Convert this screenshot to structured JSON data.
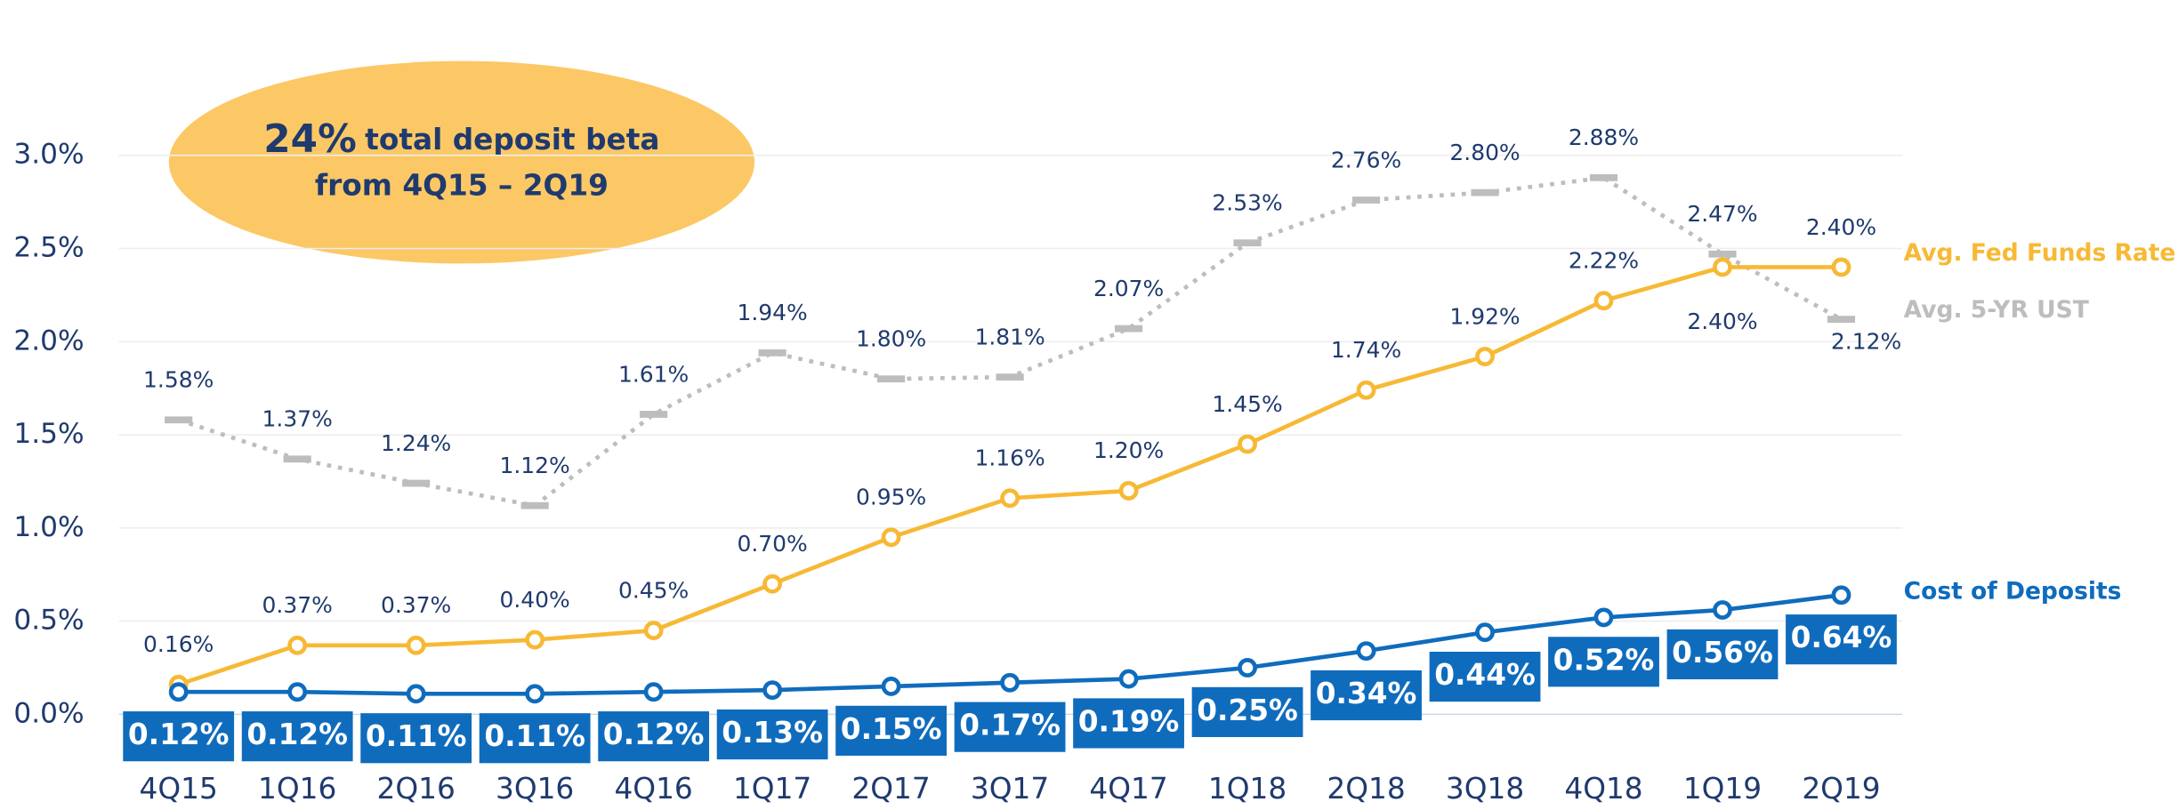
{
  "chart_data": {
    "type": "line",
    "annotation": {
      "highlight": "24%",
      "text": "total deposit beta",
      "text2": "from 4Q15 – 2Q19"
    },
    "categories": [
      "4Q15",
      "1Q16",
      "2Q16",
      "3Q16",
      "4Q16",
      "1Q17",
      "2Q17",
      "3Q17",
      "4Q17",
      "1Q18",
      "2Q18",
      "3Q18",
      "4Q18",
      "1Q19",
      "2Q19"
    ],
    "series": [
      {
        "name": "Avg. 5-YR UST",
        "color": "#bdbdbd",
        "marker": "dash",
        "values": [
          1.58,
          1.37,
          1.24,
          1.12,
          1.61,
          1.94,
          1.8,
          1.81,
          2.07,
          2.53,
          2.76,
          2.8,
          2.88,
          2.47,
          2.12
        ],
        "value_labels": [
          "1.58%",
          "1.37%",
          "1.24%",
          "1.12%",
          "1.61%",
          "1.94%",
          "1.80%",
          "1.81%",
          "2.07%",
          "2.53%",
          "2.76%",
          "2.80%",
          "2.88%",
          "2.47%",
          "2.12%"
        ]
      },
      {
        "name": "Avg. Fed Funds Rate",
        "color": "#f7b935",
        "marker": "circle",
        "values": [
          0.16,
          0.37,
          0.37,
          0.4,
          0.45,
          0.7,
          0.95,
          1.16,
          1.2,
          1.45,
          1.74,
          1.92,
          2.22,
          2.4,
          2.4
        ],
        "value_labels": [
          "0.16%",
          "0.37%",
          "0.37%",
          "0.40%",
          "0.45%",
          "0.70%",
          "0.95%",
          "1.16%",
          "1.20%",
          "1.45%",
          "1.74%",
          "1.92%",
          "2.22%",
          "2.40%",
          "2.40%"
        ]
      },
      {
        "name": "Cost of Deposits",
        "color": "#0f6cbd",
        "marker": "circle",
        "values": [
          0.12,
          0.12,
          0.11,
          0.11,
          0.12,
          0.13,
          0.15,
          0.17,
          0.19,
          0.25,
          0.34,
          0.44,
          0.52,
          0.56,
          0.64
        ],
        "value_labels": [
          "0.12%",
          "0.12%",
          "0.11%",
          "0.11%",
          "0.12%",
          "0.13%",
          "0.15%",
          "0.17%",
          "0.19%",
          "0.25%",
          "0.34%",
          "0.44%",
          "0.52%",
          "0.56%",
          "0.64%"
        ]
      }
    ],
    "ylim": [
      0,
      3
    ],
    "yticks": [
      {
        "value": 0,
        "label": "0.0%"
      },
      {
        "value": 0.5,
        "label": "0.5%"
      },
      {
        "value": 1,
        "label": "1.0%"
      },
      {
        "value": 1.5,
        "label": "1.5%"
      },
      {
        "value": 2,
        "label": "2.0%"
      },
      {
        "value": 2.5,
        "label": "2.5%"
      },
      {
        "value": 3,
        "label": "3.0%"
      }
    ],
    "grid": true
  }
}
